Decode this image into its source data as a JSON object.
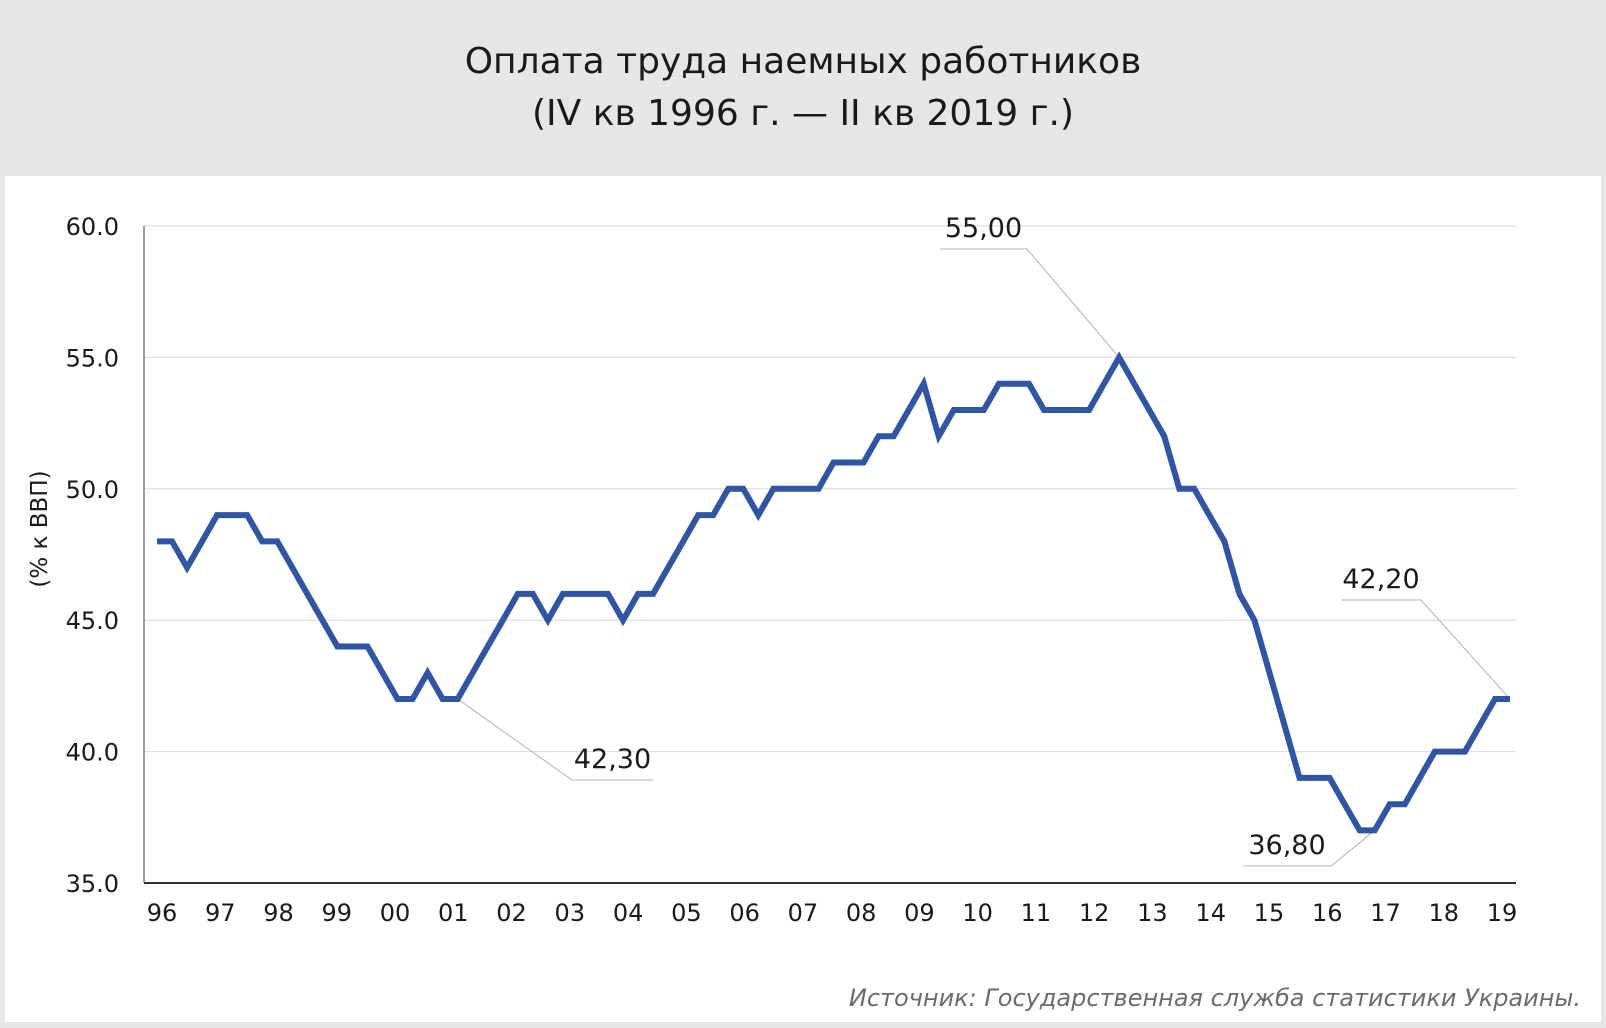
{
  "header": {
    "title": "Оплата труда наемных работников",
    "subtitle": "(IV кв 1996 г. — II кв 2019 г.)"
  },
  "source": "Источник: Государственная служба статистики Украины.",
  "chart_data": {
    "type": "line",
    "title": "Оплата труда наемных работников",
    "subtitle": "(IV кв 1996 г. — II кв 2019 г.)",
    "ylabel": "(% к ВВП)",
    "xlabel": "",
    "ylim": [
      35,
      60
    ],
    "yticks": [
      35,
      40,
      45,
      50,
      55,
      60
    ],
    "ytick_labels": [
      "35.0",
      "40.0",
      "45.0",
      "50.0",
      "55.0",
      "60.0"
    ],
    "x_tick_labels": [
      "96",
      "97",
      "98",
      "99",
      "00",
      "01",
      "02",
      "03",
      "04",
      "05",
      "06",
      "07",
      "08",
      "09",
      "10",
      "11",
      "12",
      "13",
      "14",
      "15",
      "16",
      "17",
      "18",
      "19"
    ],
    "grid": "horizontal",
    "color": "#2f55a4",
    "series": [
      {
        "name": "",
        "values": [
          48,
          48,
          47,
          48,
          49,
          49,
          49,
          48,
          48,
          47,
          46,
          45,
          44,
          44,
          44,
          43,
          42,
          42,
          43,
          42,
          42,
          43,
          44,
          45,
          46,
          46,
          45,
          46,
          46,
          46,
          46,
          45,
          46,
          46,
          47,
          48,
          49,
          49,
          50,
          50,
          49,
          50,
          50,
          50,
          50,
          51,
          51,
          51,
          52,
          52,
          53,
          54,
          52,
          53,
          53,
          53,
          54,
          54,
          54,
          53,
          53,
          53,
          53,
          54,
          55,
          54,
          53,
          52,
          50,
          50,
          49,
          48,
          46,
          45,
          43,
          41,
          39,
          39,
          39,
          38,
          37,
          37,
          38,
          38,
          39,
          40,
          40,
          40,
          41,
          42,
          42
        ]
      }
    ],
    "annotations": [
      {
        "label": "42,30",
        "point_index": 20
      },
      {
        "label": "55,00",
        "point_index": 64
      },
      {
        "label": "36,80",
        "point_index": 81
      },
      {
        "label": "42,20",
        "point_index": 90
      }
    ]
  }
}
